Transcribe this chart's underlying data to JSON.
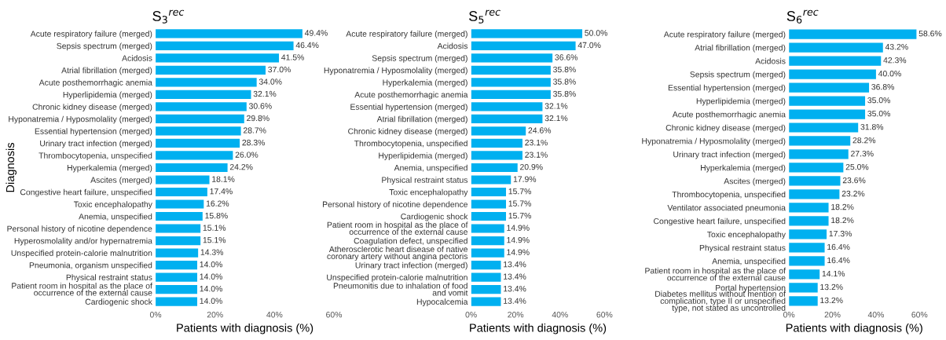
{
  "chart_data": [
    {
      "type": "bar",
      "orientation": "horizontal",
      "title": "S$_{3}$$^{rec}$",
      "xlabel": "Patients with diagnosis (%)",
      "ylabel": "Diagnosis",
      "color": "#00b0f0",
      "xlim": [
        0,
        60
      ],
      "xticks": [
        {
          "value": 0,
          "label": "0%"
        },
        {
          "value": 20,
          "label": "20%"
        },
        {
          "value": 40,
          "label": "40%"
        },
        {
          "value": 60,
          "label": "60%"
        }
      ],
      "grid": false,
      "categories": [
        "Acute respiratory failure (merged)",
        "Sepsis spectrum (merged)",
        "Acidosis",
        "Atrial fibrillation (merged)",
        "Acute posthemorrhagic anemia",
        "Hyperlipidemia (merged)",
        "Chronic kidney disease (merged)",
        "Hyponatremia / Hyposmolality (merged)",
        "Essential hypertension (merged)",
        "Urinary tract infection (merged)",
        "Thrombocytopenia, unspecified",
        "Hyperkalemia (merged)",
        "Ascites (merged)",
        "Congestive heart failure, unspecified",
        "Toxic encephalopathy",
        "Anemia, unspecified",
        "Personal history of nicotine dependence",
        "Hyperosmolality and/or hypernatremia",
        "Unspecified protein-calorie malnutrition",
        "Pneumonia, organism unspecified",
        "Physical restraint status",
        "Patient room in hospital as the place of\noccurrence of the external cause",
        "Cardiogenic shock"
      ],
      "values": [
        49.4,
        46.4,
        41.5,
        37.0,
        34.0,
        32.1,
        30.6,
        29.8,
        28.7,
        28.3,
        26.0,
        24.2,
        18.1,
        17.4,
        16.2,
        15.8,
        15.1,
        15.1,
        14.3,
        14.0,
        14.0,
        14.0,
        14.0
      ],
      "value_labels": [
        "49.4%",
        "46.4%",
        "41.5%",
        "37.0%",
        "34.0%",
        "32.1%",
        "30.6%",
        "29.8%",
        "28.7%",
        "28.3%",
        "26.0%",
        "24.2%",
        "18.1%",
        "17.4%",
        "16.2%",
        "15.8%",
        "15.1%",
        "15.1%",
        "14.3%",
        "14.0%",
        "14.0%",
        "14.0%",
        "14.0%"
      ]
    },
    {
      "type": "bar",
      "orientation": "horizontal",
      "title": "S$_{5}$$^{rec}$",
      "xlabel": "Patients with diagnosis (%)",
      "color": "#00b0f0",
      "xlim": [
        0,
        60
      ],
      "xticks": [
        {
          "value": 0,
          "label": "0%"
        },
        {
          "value": 20,
          "label": "20%"
        },
        {
          "value": 40,
          "label": "40%"
        },
        {
          "value": 60,
          "label": "60%"
        }
      ],
      "grid": false,
      "categories": [
        "Acute respiratory failure (merged)",
        "Acidosis",
        "Sepsis spectrum (merged)",
        "Hyponatremia / Hyposmolality (merged)",
        "Hyperkalemia (merged)",
        "Acute posthemorrhagic anemia",
        "Essential hypertension (merged)",
        "Atrial fibrillation (merged)",
        "Chronic kidney disease (merged)",
        "Thrombocytopenia, unspecified",
        "Hyperlipidemia (merged)",
        "Anemia, unspecified",
        "Physical restraint status",
        "Toxic encephalopathy",
        "Personal history of nicotine dependence",
        "Cardiogenic shock",
        "Patient room in hospital as the place of\noccurrence of the external cause",
        "Coagulation defect, unspecified",
        "Atherosclerotic heart disease of native\ncoronary artery without angina pectoris",
        "Urinary tract infection (merged)",
        "Unspecified protein-calorie malnutrition",
        "Pneumonitis due to inhalation of food\nand vomit",
        "Hypocalcemia"
      ],
      "values": [
        50.0,
        47.0,
        36.6,
        35.8,
        35.8,
        35.8,
        32.1,
        32.1,
        24.6,
        23.1,
        23.1,
        20.9,
        17.9,
        15.7,
        15.7,
        15.7,
        14.9,
        14.9,
        14.9,
        13.4,
        13.4,
        13.4,
        13.4
      ],
      "value_labels": [
        "50.0%",
        "47.0%",
        "36.6%",
        "35.8%",
        "35.8%",
        "35.8%",
        "32.1%",
        "32.1%",
        "24.6%",
        "23.1%",
        "23.1%",
        "20.9%",
        "17.9%",
        "15.7%",
        "15.7%",
        "15.7%",
        "14.9%",
        "14.9%",
        "14.9%",
        "13.4%",
        "13.4%",
        "13.4%",
        "13.4%"
      ]
    },
    {
      "type": "bar",
      "orientation": "horizontal",
      "title": "S$_{6}$$^{rec}$",
      "xlabel": "Patients with diagnosis (%)",
      "color": "#00b0f0",
      "xlim": [
        0,
        60
      ],
      "xticks": [
        {
          "value": 0,
          "label": "0%"
        },
        {
          "value": 20,
          "label": "20%"
        },
        {
          "value": 40,
          "label": "40%"
        },
        {
          "value": 60,
          "label": "60%"
        }
      ],
      "grid": false,
      "categories": [
        "Acute respiratory failure (merged)",
        "Atrial fibrillation (merged)",
        "Acidosis",
        "Sepsis spectrum (merged)",
        "Essential hypertension (merged)",
        "Hyperlipidemia (merged)",
        "Acute posthemorrhagic anemia",
        "Chronic kidney disease (merged)",
        "Hyponatremia / Hyposmolality (merged)",
        "Urinary tract infection (merged)",
        "Hyperkalemia (merged)",
        "Ascites (merged)",
        "Thrombocytopenia, unspecified",
        "Ventilator associated pneumonia",
        "Congestive heart failure, unspecified",
        "Toxic encephalopathy",
        "Physical restraint status",
        "Anemia, unspecified",
        "Patient room in hospital as the place of\noccurrence of the external cause",
        "Portal hypertension",
        "Diabetes mellitus without mention of\ncomplication, type II or unspecified\ntype, not stated as uncontrolled"
      ],
      "values": [
        58.6,
        43.2,
        42.3,
        40.0,
        36.8,
        35.0,
        35.0,
        31.8,
        28.2,
        27.3,
        25.0,
        23.6,
        23.2,
        18.2,
        18.2,
        17.3,
        16.4,
        16.4,
        14.1,
        13.2,
        13.2
      ],
      "value_labels": [
        "58.6%",
        "43.2%",
        "42.3%",
        "40.0%",
        "36.8%",
        "35.0%",
        "35.0%",
        "31.8%",
        "28.2%",
        "27.3%",
        "25.0%",
        "23.6%",
        "23.2%",
        "18.2%",
        "18.2%",
        "17.3%",
        "16.4%",
        "16.4%",
        "14.1%",
        "13.2%",
        "13.2%"
      ]
    }
  ]
}
